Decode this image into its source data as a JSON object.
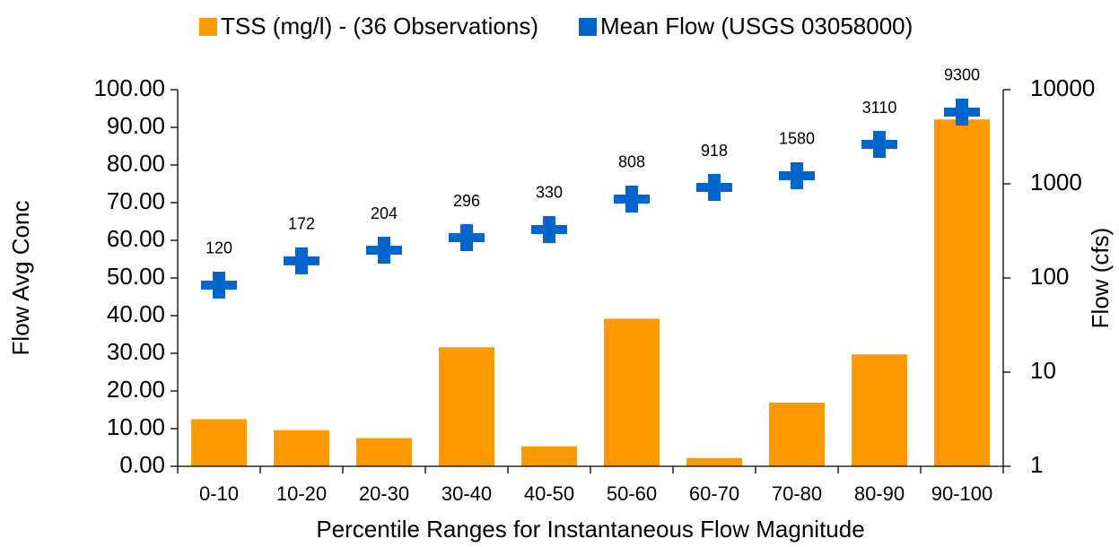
{
  "chart_data": {
    "type": "bar_line",
    "x_label": "Percentile Ranges for Instantaneous Flow Magnitude",
    "y_label": "Flow Avg Conc",
    "y2_label": "Flow (cfs)",
    "categories": [
      "0-10",
      "10-20",
      "20-30",
      "30-40",
      "40-50",
      "50-60",
      "60-70",
      "70-80",
      "80-90",
      "90-100"
    ],
    "series": [
      {
        "name": "TSS (mg/l) - (36 Observations)",
        "color": "#FF9900",
        "type": "bar",
        "values": [
          12.5,
          9.6,
          7.5,
          31.6,
          5.3,
          39.2,
          2.2,
          16.9,
          29.7,
          92.1
        ]
      },
      {
        "name": "Mean Flow (USGS 03058000)",
        "color": "#0066CC",
        "type": "marker",
        "axis": "y2",
        "values": [
          84,
          152,
          197,
          268,
          327,
          689,
          916,
          1219,
          2624,
          5780
        ]
      }
    ],
    "annotations": [
      120,
      172,
      204,
      296,
      330,
      808,
      918,
      1580,
      3110,
      9300
    ],
    "ylim": [
      0,
      100
    ],
    "yticks": [
      {
        "value": 0,
        "label": "0.00"
      },
      {
        "value": 10,
        "label": "10.00"
      },
      {
        "value": 20,
        "label": "20.00"
      },
      {
        "value": 30,
        "label": "30.00"
      },
      {
        "value": 40,
        "label": "40.00"
      },
      {
        "value": 50,
        "label": "50.00"
      },
      {
        "value": 60,
        "label": "60.00"
      },
      {
        "value": 70,
        "label": "70.00"
      },
      {
        "value": 80,
        "label": "80.00"
      },
      {
        "value": 90,
        "label": "90.00"
      },
      {
        "value": 100,
        "label": "100.00"
      }
    ],
    "y2lim": [
      1,
      10000
    ],
    "y2ticks": [
      1,
      10,
      100,
      1000,
      10000
    ],
    "y2_log": true,
    "legend": "top"
  }
}
